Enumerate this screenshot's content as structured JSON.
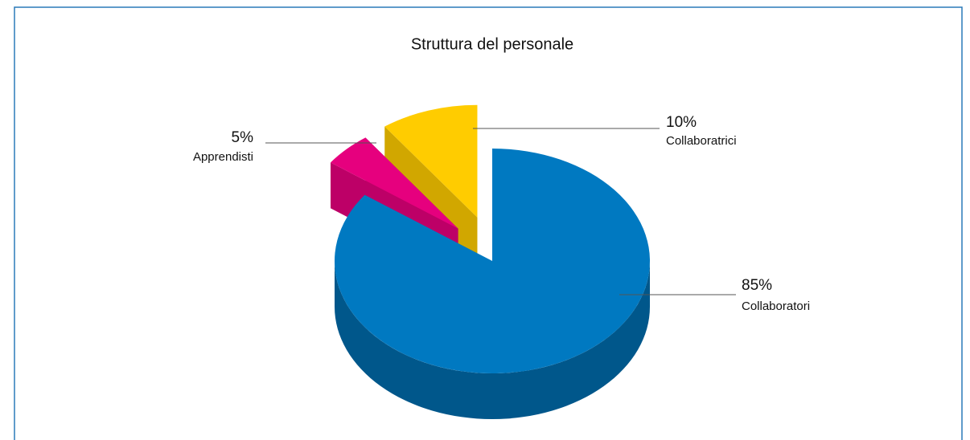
{
  "chart_data": {
    "type": "pie3d",
    "title": "Struttura del personale",
    "categories": [
      "Collaboratori",
      "Apprendisti",
      "Collaboratrici"
    ],
    "values": [
      85,
      5,
      10
    ],
    "value_labels": [
      "85%",
      "5%",
      "10%"
    ],
    "colors": [
      "#0079c1",
      "#e6007e",
      "#ffcc00"
    ]
  }
}
